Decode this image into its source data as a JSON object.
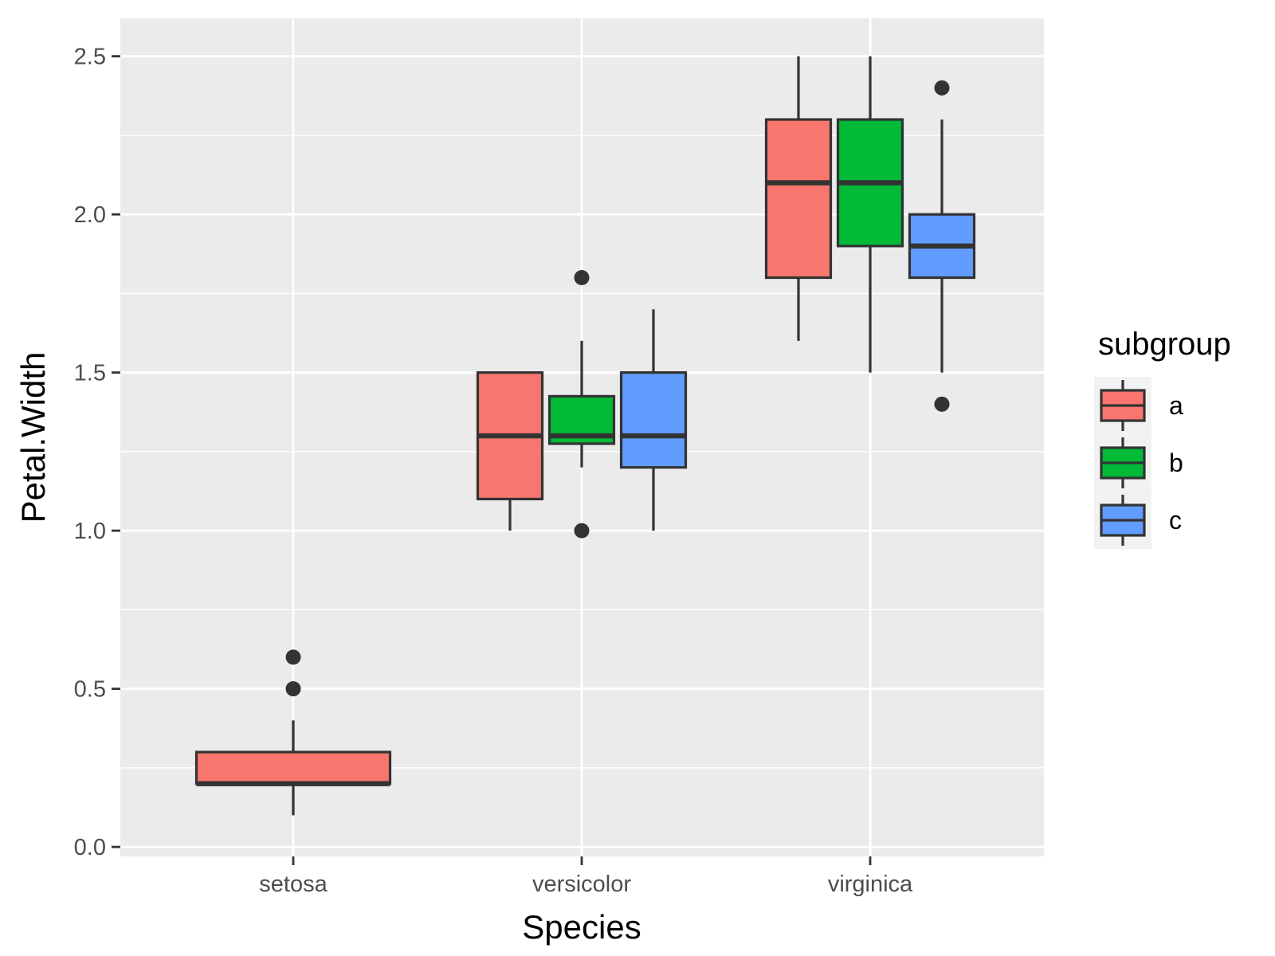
{
  "chart_data": {
    "type": "boxplot",
    "xlabel": "Species",
    "ylabel": "Petal.Width",
    "ylim": [
      -0.03,
      2.62
    ],
    "yticks": [
      0.0,
      0.5,
      1.0,
      1.5,
      2.0,
      2.5
    ],
    "ytick_labels": [
      "0.0",
      "0.5",
      "1.0",
      "1.5",
      "2.0",
      "2.5"
    ],
    "categories": [
      "setosa",
      "versicolor",
      "virginica"
    ],
    "legend": {
      "title": "subgroup",
      "position": "right",
      "entries": [
        {
          "label": "a",
          "color": "#F8766D"
        },
        {
          "label": "b",
          "color": "#00BA38"
        },
        {
          "label": "c",
          "color": "#619CFF"
        }
      ]
    },
    "colors": {
      "panel_background": "#EBEBEB",
      "grid": "#FFFFFF",
      "box_outline": "#333333"
    },
    "boxes": [
      {
        "category": "setosa",
        "subgroup": "a",
        "slots": 1,
        "slot": 0,
        "q1": 0.2,
        "median": 0.2,
        "q3": 0.3,
        "whisker_low": 0.1,
        "whisker_high": 0.4,
        "outliers": [
          0.5,
          0.6
        ]
      },
      {
        "category": "versicolor",
        "subgroup": "a",
        "slots": 3,
        "slot": 0,
        "q1": 1.1,
        "median": 1.3,
        "q3": 1.5,
        "whisker_low": 1.0,
        "whisker_high": 1.5,
        "outliers": []
      },
      {
        "category": "versicolor",
        "subgroup": "b",
        "slots": 3,
        "slot": 1,
        "q1": 1.275,
        "median": 1.3,
        "q3": 1.425,
        "whisker_low": 1.2,
        "whisker_high": 1.6,
        "outliers": [
          1.0,
          1.8
        ]
      },
      {
        "category": "versicolor",
        "subgroup": "c",
        "slots": 3,
        "slot": 2,
        "q1": 1.2,
        "median": 1.3,
        "q3": 1.5,
        "whisker_low": 1.0,
        "whisker_high": 1.7,
        "outliers": []
      },
      {
        "category": "virginica",
        "subgroup": "a",
        "slots": 3,
        "slot": 0,
        "q1": 1.8,
        "median": 2.1,
        "q3": 2.3,
        "whisker_low": 1.6,
        "whisker_high": 2.5,
        "outliers": []
      },
      {
        "category": "virginica",
        "subgroup": "b",
        "slots": 3,
        "slot": 1,
        "q1": 1.9,
        "median": 2.1,
        "q3": 2.3,
        "whisker_low": 1.5,
        "whisker_high": 2.5,
        "outliers": []
      },
      {
        "category": "virginica",
        "subgroup": "c",
        "slots": 3,
        "slot": 2,
        "q1": 1.8,
        "median": 1.9,
        "q3": 2.0,
        "whisker_low": 1.5,
        "whisker_high": 2.3,
        "outliers": [
          1.4,
          2.4
        ]
      }
    ]
  }
}
